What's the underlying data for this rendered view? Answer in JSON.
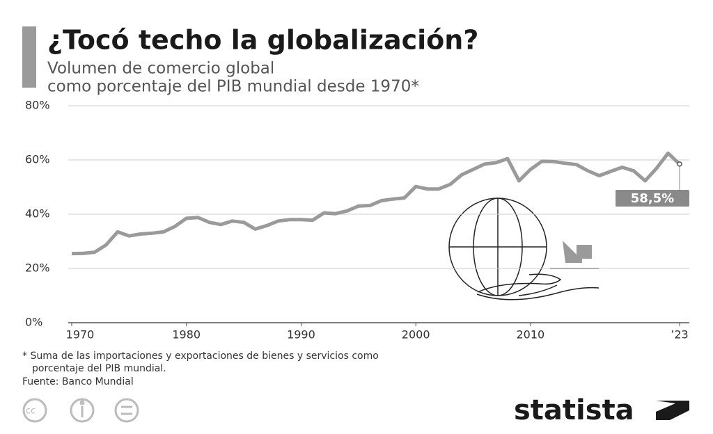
{
  "chart_data": {
    "type": "line",
    "title": "¿Tocó techo la globalización?",
    "subtitle": [
      "Volumen de comercio global",
      "como porcentaje del PIB mundial desde 1970*"
    ],
    "x": [
      1970,
      1971,
      1972,
      1973,
      1974,
      1975,
      1976,
      1977,
      1978,
      1979,
      1980,
      1981,
      1982,
      1983,
      1984,
      1985,
      1986,
      1987,
      1988,
      1989,
      1990,
      1991,
      1992,
      1993,
      1994,
      1995,
      1996,
      1997,
      1998,
      1999,
      2000,
      2001,
      2002,
      2003,
      2004,
      2005,
      2006,
      2007,
      2008,
      2009,
      2010,
      2011,
      2012,
      2013,
      2014,
      2015,
      2016,
      2017,
      2018,
      2019,
      2020,
      2021,
      2022,
      2023
    ],
    "values": [
      25.5,
      25.6,
      26,
      28.7,
      33.5,
      32,
      32.7,
      33,
      33.5,
      35.5,
      38.5,
      38.8,
      37,
      36.2,
      37.5,
      37,
      34.5,
      35.8,
      37.5,
      38,
      38,
      37.8,
      40.5,
      40.2,
      41.2,
      43,
      43.2,
      45,
      45.6,
      46,
      50.2,
      49.3,
      49.3,
      51,
      54.5,
      56.5,
      58.5,
      59,
      60.5,
      52.3,
      56.5,
      59.5,
      59.4,
      58.8,
      58.3,
      56,
      54.2,
      55.8,
      57.3,
      56,
      52.3,
      57,
      62.5,
      58.5
    ],
    "value_labels": [
      null,
      null,
      null,
      null,
      null,
      null,
      null,
      null,
      null,
      null,
      null,
      null,
      null,
      null,
      null,
      null,
      null,
      null,
      null,
      null,
      null,
      null,
      null,
      null,
      null,
      null,
      null,
      null,
      null,
      null,
      null,
      null,
      null,
      null,
      null,
      null,
      null,
      null,
      null,
      null,
      null,
      null,
      null,
      null,
      null,
      null,
      null,
      null,
      null,
      null,
      null,
      null,
      null,
      "58,5%"
    ],
    "color": "#9a9a9a",
    "xlim": [
      1970,
      2023
    ],
    "xticks": [
      1970,
      1980,
      1990,
      2000,
      2010,
      {
        "value": 2023,
        "label": "’23"
      }
    ],
    "ylim": [
      0,
      80
    ],
    "yticks": [
      {
        "value": 0,
        "label": "0%"
      },
      {
        "value": 20,
        "label": "20%"
      },
      {
        "value": 40,
        "label": "40%"
      },
      {
        "value": 60,
        "label": "60%"
      },
      {
        "value": 80,
        "label": "80%"
      }
    ],
    "grid": true,
    "footnote": [
      "* Suma de las importaciones y exportaciones de bienes y servicios como",
      "porcentaje del PIB mundial."
    ],
    "source": "Fuente: Banco Mundial",
    "brand": "statista"
  }
}
